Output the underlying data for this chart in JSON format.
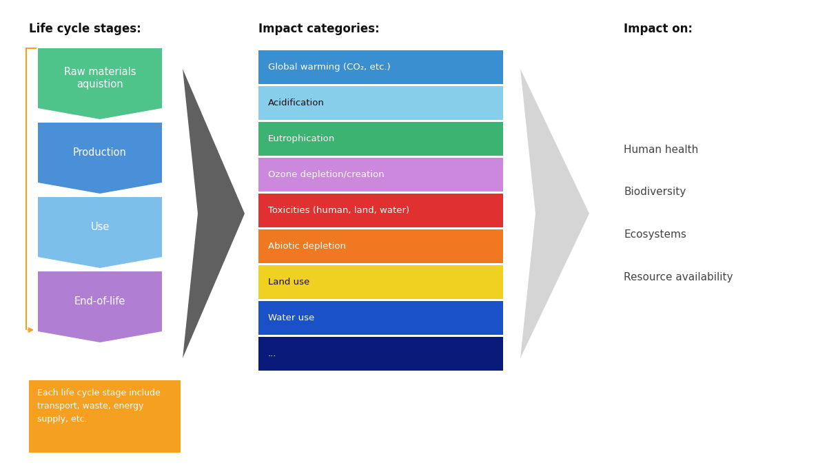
{
  "bg_color": "#ffffff",
  "title_fontsize": 12,
  "section1_title": "Life cycle stages:",
  "section2_title": "Impact categories:",
  "section3_title": "Impact on:",
  "lifecycle_stages": [
    {
      "label": "Raw materials\naquistion",
      "color": "#4ec48a"
    },
    {
      "label": "Production",
      "color": "#4a90d9"
    },
    {
      "label": "Use",
      "color": "#7bbfea"
    },
    {
      "label": "End-of-life",
      "color": "#b07fd4"
    }
  ],
  "impact_categories": [
    {
      "label": "Global warming (CO₂, etc.)",
      "color": "#3a8fd1",
      "text_color": "#ffffff"
    },
    {
      "label": "Acidification",
      "color": "#87ceeb",
      "text_color": "#111111"
    },
    {
      "label": "Eutrophication",
      "color": "#3cb371",
      "text_color": "#ffffff"
    },
    {
      "label": "Ozone depletion/creation",
      "color": "#cc88dd",
      "text_color": "#ffffff"
    },
    {
      "label": "Toxicities (human, land, water)",
      "color": "#e03030",
      "text_color": "#ffffff"
    },
    {
      "label": "Abiotic depletion",
      "color": "#f07820",
      "text_color": "#ffffff"
    },
    {
      "label": "Land use",
      "color": "#f0d020",
      "text_color": "#111111"
    },
    {
      "label": "Water use",
      "color": "#1a50c8",
      "text_color": "#ffffff"
    },
    {
      "label": "...",
      "color": "#0a1a7a",
      "text_color": "#ffffff"
    }
  ],
  "impact_on": [
    "Human health",
    "Biodiversity",
    "Ecosystems",
    "Resource availability"
  ],
  "note_text": "Each life cycle stage include\ntransport, waste, energy\nsupply, etc.",
  "note_color": "#f5a020",
  "note_text_color": "#ffffff"
}
